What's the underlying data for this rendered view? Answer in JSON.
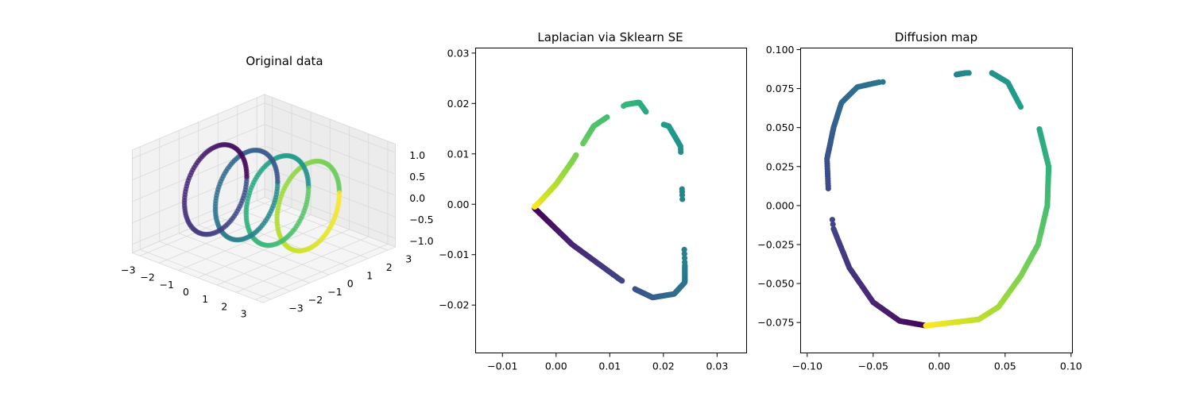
{
  "chart_data": [
    {
      "type": "scatter",
      "projection": "3d",
      "title": "Original data",
      "xlim": [
        -3,
        3
      ],
      "ylim": [
        -3,
        3
      ],
      "zlim": [
        -1,
        1
      ],
      "x_ticks": [
        "−3",
        "−2",
        "−1",
        "0",
        "1",
        "2",
        "3"
      ],
      "y_ticks": [
        "−3",
        "−2",
        "−1",
        "0",
        "1",
        "2",
        "3"
      ],
      "z_ticks": [
        "−1.0",
        "−0.5",
        "0.0",
        "0.5",
        "1.0"
      ],
      "z_tick_values": [
        -1.0,
        -0.5,
        0.0,
        0.5,
        1.0
      ],
      "colormap": "viridis",
      "description_of_shape": "four vertical circles of radius 1 centred at x = -1.9, -0.7, 0.5, 1.7; color index increases along the sequence"
    },
    {
      "type": "scatter",
      "title": "Laplacian via Sklearn SE",
      "xlabel": "",
      "ylabel": "",
      "xlim": [
        -0.015,
        0.0355
      ],
      "ylim": [
        -0.0295,
        0.031
      ],
      "x_ticks": [
        -0.01,
        0.0,
        0.01,
        0.02,
        0.03
      ],
      "x_tick_labels": [
        "−0.01",
        "0.00",
        "0.01",
        "0.02",
        "0.03"
      ],
      "y_ticks": [
        -0.02,
        -0.01,
        0.0,
        0.01,
        0.02,
        0.03
      ],
      "y_tick_labels": [
        "−0.02",
        "−0.01",
        "0.00",
        "0.01",
        "0.02",
        "0.03"
      ],
      "colormap": "viridis",
      "points_path_note": "piecewise path, color fraction t from 0 to 1",
      "path": [
        {
          "t": 0.0,
          "x": -0.004,
          "y": -0.0008
        },
        {
          "t": 0.1,
          "x": 0.003,
          "y": -0.008
        },
        {
          "t": 0.2,
          "x": 0.012,
          "y": -0.015
        },
        {
          "t": 0.25,
          "x": 0.015,
          "y": -0.017
        },
        {
          "t": 0.3,
          "x": 0.018,
          "y": -0.0185
        },
        {
          "t": 0.35,
          "x": 0.022,
          "y": -0.0178
        },
        {
          "t": 0.38,
          "x": 0.024,
          "y": -0.0155
        },
        {
          "t": 0.42,
          "x": 0.024,
          "y": -0.012
        },
        {
          "t": 0.46,
          "x": 0.0235,
          "y": 0.002
        },
        {
          "t": 0.5,
          "x": 0.0232,
          "y": 0.0115
        },
        {
          "t": 0.55,
          "x": 0.021,
          "y": 0.0155
        },
        {
          "t": 0.58,
          "x": 0.018,
          "y": 0.0165
        },
        {
          "t": 0.62,
          "x": 0.0155,
          "y": 0.0202
        },
        {
          "t": 0.66,
          "x": 0.013,
          "y": 0.0198
        },
        {
          "t": 0.72,
          "x": 0.007,
          "y": 0.0155
        },
        {
          "t": 0.8,
          "x": 0.003,
          "y": 0.0085
        },
        {
          "t": 0.88,
          "x": 0.0,
          "y": 0.004
        },
        {
          "t": 0.95,
          "x": -0.003,
          "y": 0.0005
        },
        {
          "t": 1.0,
          "x": -0.004,
          "y": -0.0005
        }
      ],
      "gaps_t": [
        [
          0.205,
          0.245
        ],
        [
          0.43,
          0.455
        ],
        [
          0.465,
          0.495
        ],
        [
          0.56,
          0.6
        ],
        [
          0.665,
          0.695
        ],
        [
          0.76,
          0.785
        ]
      ]
    },
    {
      "type": "scatter",
      "title": "Diffusion map",
      "xlabel": "",
      "ylabel": "",
      "xlim": [
        -0.105,
        0.101
      ],
      "ylim": [
        -0.0945,
        0.101
      ],
      "x_ticks": [
        -0.1,
        -0.05,
        0.0,
        0.05,
        0.1
      ],
      "x_tick_labels": [
        "−0.10",
        "−0.05",
        "0.00",
        "0.05",
        "0.10"
      ],
      "y_ticks": [
        -0.075,
        -0.05,
        -0.025,
        0.0,
        0.025,
        0.05,
        0.075,
        0.1
      ],
      "y_tick_labels": [
        "−0.075",
        "−0.050",
        "−0.025",
        "0.000",
        "0.025",
        "0.050",
        "0.075",
        "0.100"
      ],
      "colormap": "viridis",
      "path": [
        {
          "t": 0.0,
          "x": -0.01,
          "y": -0.077
        },
        {
          "t": 0.05,
          "x": -0.03,
          "y": -0.074
        },
        {
          "t": 0.1,
          "x": -0.05,
          "y": -0.062
        },
        {
          "t": 0.15,
          "x": -0.068,
          "y": -0.04
        },
        {
          "t": 0.2,
          "x": -0.08,
          "y": -0.015
        },
        {
          "t": 0.22,
          "x": -0.084,
          "y": 0.01
        },
        {
          "t": 0.25,
          "x": -0.085,
          "y": 0.03
        },
        {
          "t": 0.3,
          "x": -0.08,
          "y": 0.05
        },
        {
          "t": 0.33,
          "x": -0.074,
          "y": 0.066
        },
        {
          "t": 0.36,
          "x": -0.062,
          "y": 0.076
        },
        {
          "t": 0.39,
          "x": -0.046,
          "y": 0.079
        },
        {
          "t": 0.44,
          "x": 0.013,
          "y": 0.084
        },
        {
          "t": 0.47,
          "x": 0.02,
          "y": 0.085
        },
        {
          "t": 0.5,
          "x": 0.04,
          "y": 0.085
        },
        {
          "t": 0.53,
          "x": 0.052,
          "y": 0.079
        },
        {
          "t": 0.56,
          "x": 0.062,
          "y": 0.063
        },
        {
          "t": 0.6,
          "x": 0.076,
          "y": 0.049
        },
        {
          "t": 0.65,
          "x": 0.083,
          "y": 0.025
        },
        {
          "t": 0.7,
          "x": 0.082,
          "y": 0.0
        },
        {
          "t": 0.75,
          "x": 0.075,
          "y": -0.025
        },
        {
          "t": 0.8,
          "x": 0.062,
          "y": -0.045
        },
        {
          "t": 0.86,
          "x": 0.045,
          "y": -0.065
        },
        {
          "t": 0.9,
          "x": 0.03,
          "y": -0.073
        },
        {
          "t": 0.95,
          "x": 0.01,
          "y": -0.075
        },
        {
          "t": 1.0,
          "x": -0.01,
          "y": -0.077
        }
      ],
      "gaps_t": [
        [
          0.205,
          0.22
        ],
        [
          0.395,
          0.44
        ],
        [
          0.475,
          0.5
        ],
        [
          0.56,
          0.6
        ]
      ]
    }
  ]
}
